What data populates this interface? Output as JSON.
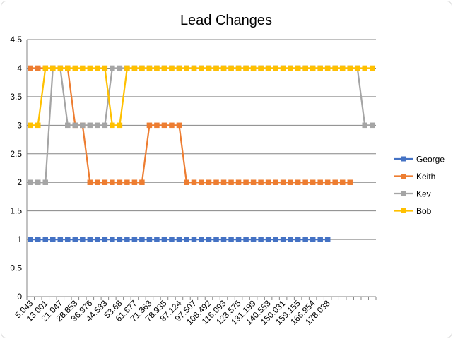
{
  "chart_data": {
    "type": "line",
    "title": "Lead Changes",
    "xlabel": "",
    "ylabel": "",
    "ylim": [
      0,
      4.5
    ],
    "y_ticks": [
      "0",
      "0.5",
      "1",
      "1.5",
      "2",
      "2.5",
      "3",
      "3.5",
      "4",
      "4.5"
    ],
    "x_tick_labels": [
      "5.043",
      "13.001",
      "21.047",
      "28.853",
      "36.976",
      "44.583",
      "53.68",
      "61.677",
      "71.363",
      "78.935",
      "87.124",
      "97.507",
      "108.492",
      "116.093",
      "123.575",
      "131.199",
      "140.553",
      "150.031",
      "159.155",
      "166.954",
      "178.038"
    ],
    "point_count": 47,
    "grid": "horizontal",
    "legend_position": "right",
    "series": [
      {
        "name": "George",
        "color": "#4472c4",
        "values": [
          1,
          1,
          1,
          1,
          1,
          1,
          1,
          1,
          1,
          1,
          1,
          1,
          1,
          1,
          1,
          1,
          1,
          1,
          1,
          1,
          1,
          1,
          1,
          1,
          1,
          1,
          1,
          1,
          1,
          1,
          1,
          1,
          1,
          1,
          1,
          1,
          1,
          1,
          1,
          1,
          1,
          null,
          null,
          null,
          null,
          null,
          null
        ]
      },
      {
        "name": "Keith",
        "color": "#ed7d31",
        "values": [
          4,
          4,
          4,
          4,
          4,
          4,
          3,
          3,
          2,
          2,
          2,
          2,
          2,
          2,
          2,
          2,
          3,
          3,
          3,
          3,
          3,
          2,
          2,
          2,
          2,
          2,
          2,
          2,
          2,
          2,
          2,
          2,
          2,
          2,
          2,
          2,
          2,
          2,
          2,
          2,
          2,
          2,
          2,
          2,
          null,
          null,
          null
        ]
      },
      {
        "name": "Kev",
        "color": "#a5a5a5",
        "values": [
          2,
          2,
          2,
          4,
          4,
          3,
          3,
          3,
          3,
          3,
          3,
          4,
          4,
          4,
          4,
          4,
          4,
          4,
          4,
          4,
          4,
          4,
          4,
          4,
          4,
          4,
          4,
          4,
          4,
          4,
          4,
          4,
          4,
          4,
          4,
          4,
          4,
          4,
          4,
          4,
          4,
          4,
          4,
          4,
          4,
          3,
          3
        ]
      },
      {
        "name": "Bob",
        "color": "#ffc000",
        "values": [
          3,
          3,
          4,
          4,
          4,
          4,
          4,
          4,
          4,
          4,
          4,
          3,
          3,
          4,
          4,
          4,
          4,
          4,
          4,
          4,
          4,
          4,
          4,
          4,
          4,
          4,
          4,
          4,
          4,
          4,
          4,
          4,
          4,
          4,
          4,
          4,
          4,
          4,
          4,
          4,
          4,
          4,
          4,
          4,
          4,
          4,
          4
        ]
      }
    ]
  }
}
